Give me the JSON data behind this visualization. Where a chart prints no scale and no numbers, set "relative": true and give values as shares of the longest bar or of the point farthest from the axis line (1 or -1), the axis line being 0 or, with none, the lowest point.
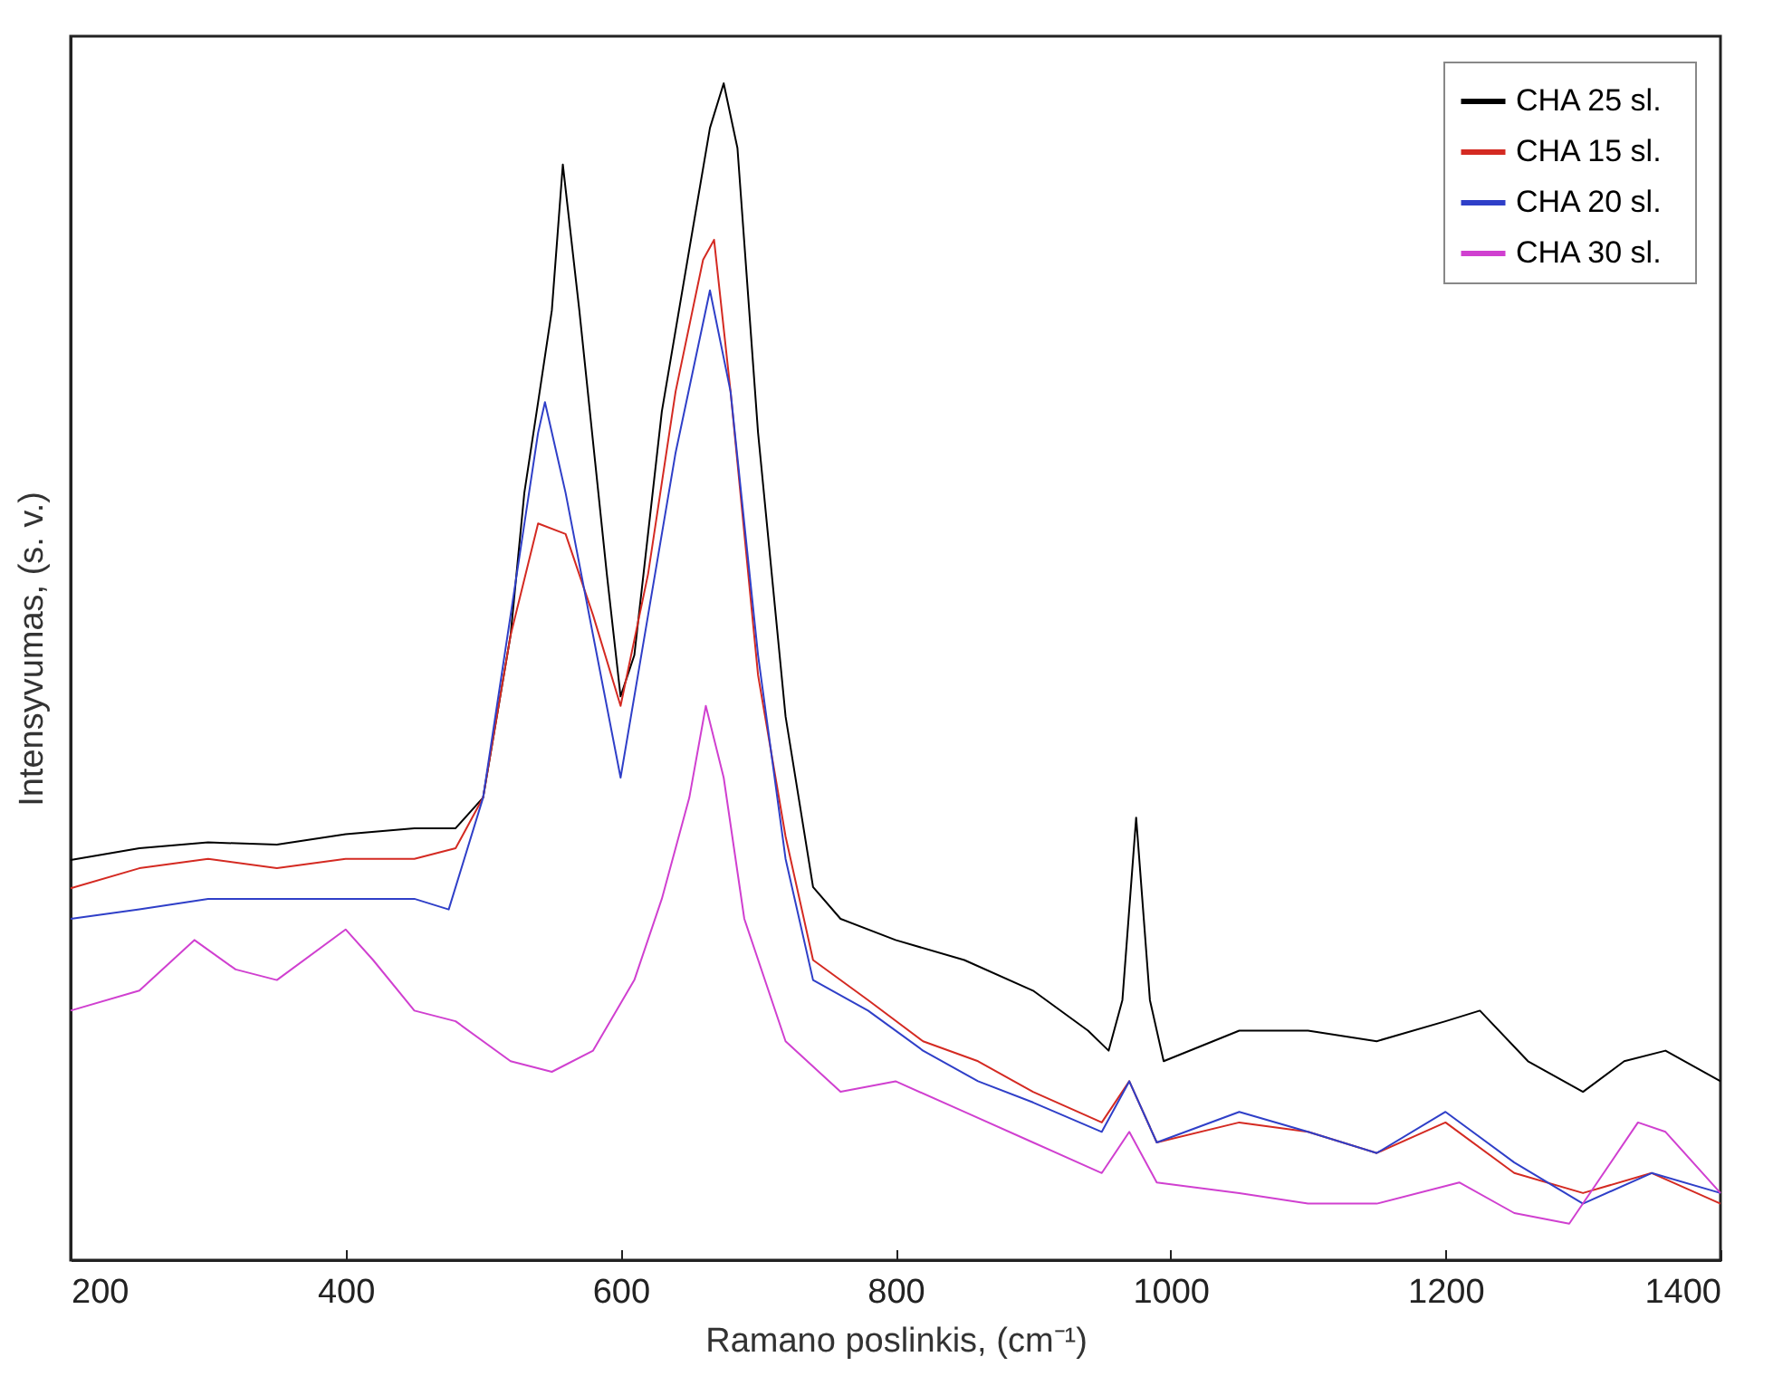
{
  "chart_data": {
    "type": "line",
    "relative": true,
    "xlabel": "Ramano poslinkis, (cm⁻¹)",
    "ylabel": "Intensyvumas, (s. v.)",
    "xlim": [
      200,
      1400
    ],
    "xticks": [
      200,
      400,
      600,
      800,
      1000,
      1200,
      1400
    ],
    "legend": "top right",
    "grid": false,
    "line_style": "solid",
    "marker": "none",
    "series": [
      {
        "name": "CHA   25 sl.",
        "color": "#000000",
        "x": [
          200,
          250,
          300,
          350,
          400,
          450,
          480,
          500,
          520,
          530,
          540,
          550,
          558,
          570,
          590,
          600,
          610,
          630,
          650,
          665,
          675,
          685,
          700,
          720,
          740,
          760,
          800,
          850,
          900,
          940,
          955,
          965,
          975,
          985,
          995,
          1050,
          1100,
          1150,
          1200,
          1225,
          1260,
          1300,
          1330,
          1360,
          1400
        ],
        "values": [
          0.34,
          0.35,
          0.355,
          0.353,
          0.362,
          0.367,
          0.367,
          0.393,
          0.531,
          0.652,
          0.729,
          0.807,
          0.931,
          0.807,
          0.583,
          0.479,
          0.514,
          0.721,
          0.859,
          0.962,
          1,
          0.945,
          0.703,
          0.462,
          0.317,
          0.29,
          0.272,
          0.255,
          0.229,
          0.195,
          0.178,
          0.221,
          0.376,
          0.221,
          0.169,
          0.195,
          0.195,
          0.186,
          0.203,
          0.212,
          0.169,
          0.143,
          0.169,
          0.178,
          0.152
        ]
      },
      {
        "name": "CHA   15 sl.",
        "color": "#d42a22",
        "x": [
          200,
          250,
          300,
          350,
          400,
          450,
          480,
          500,
          520,
          540,
          560,
          580,
          600,
          620,
          640,
          660,
          668,
          680,
          700,
          720,
          740,
          780,
          820,
          860,
          900,
          950,
          970,
          990,
          1050,
          1100,
          1150,
          1200,
          1250,
          1300,
          1350,
          1400
        ],
        "values": [
          0.316,
          0.333,
          0.341,
          0.333,
          0.341,
          0.341,
          0.35,
          0.393,
          0.531,
          0.626,
          0.617,
          0.548,
          0.471,
          0.583,
          0.738,
          0.85,
          0.867,
          0.738,
          0.497,
          0.36,
          0.255,
          0.221,
          0.186,
          0.169,
          0.143,
          0.117,
          0.152,
          0.1,
          0.117,
          0.109,
          0.091,
          0.117,
          0.074,
          0.057,
          0.074,
          0.048
        ]
      },
      {
        "name": "CHA   20 sl.",
        "color": "#2f3fc8",
        "x": [
          200,
          250,
          300,
          350,
          400,
          450,
          475,
          500,
          520,
          540,
          545,
          560,
          580,
          600,
          620,
          640,
          665,
          680,
          700,
          720,
          740,
          780,
          820,
          860,
          900,
          950,
          970,
          990,
          1050,
          1100,
          1150,
          1200,
          1250,
          1300,
          1350,
          1400
        ],
        "values": [
          0.29,
          0.298,
          0.307,
          0.307,
          0.307,
          0.307,
          0.298,
          0.393,
          0.548,
          0.703,
          0.729,
          0.652,
          0.531,
          0.41,
          0.548,
          0.686,
          0.824,
          0.738,
          0.514,
          0.341,
          0.238,
          0.212,
          0.178,
          0.152,
          0.134,
          0.109,
          0.152,
          0.1,
          0.126,
          0.109,
          0.091,
          0.126,
          0.083,
          0.048,
          0.074,
          0.057
        ]
      },
      {
        "name": "CHA   30 sl.",
        "color": "#d040d0",
        "x": [
          200,
          250,
          290,
          320,
          350,
          400,
          420,
          450,
          480,
          520,
          550,
          580,
          610,
          630,
          650,
          662,
          675,
          690,
          720,
          760,
          800,
          850,
          900,
          950,
          970,
          990,
          1050,
          1100,
          1150,
          1210,
          1250,
          1290,
          1340,
          1360,
          1400
        ],
        "values": [
          0.212,
          0.229,
          0.272,
          0.247,
          0.238,
          0.281,
          0.255,
          0.212,
          0.203,
          0.169,
          0.16,
          0.178,
          0.238,
          0.307,
          0.393,
          0.471,
          0.41,
          0.29,
          0.186,
          0.143,
          0.152,
          0.126,
          0.1,
          0.074,
          0.109,
          0.066,
          0.057,
          0.048,
          0.048,
          0.066,
          0.04,
          0.031,
          0.117,
          0.109,
          0.057
        ]
      }
    ]
  }
}
